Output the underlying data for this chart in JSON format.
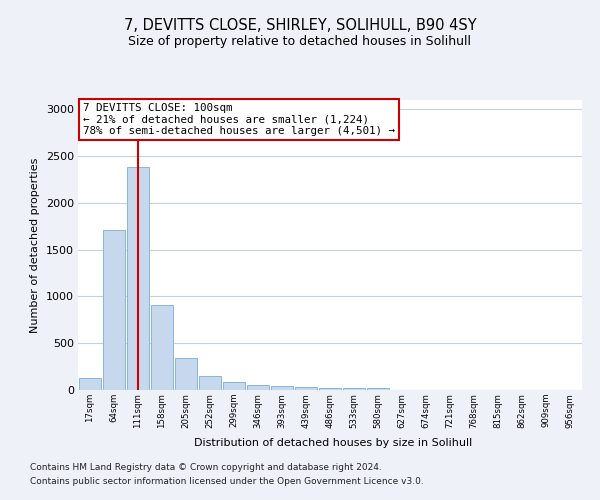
{
  "title": "7, DEVITTS CLOSE, SHIRLEY, SOLIHULL, B90 4SY",
  "subtitle": "Size of property relative to detached houses in Solihull",
  "xlabel": "Distribution of detached houses by size in Solihull",
  "ylabel": "Number of detached properties",
  "bar_color": "#c5d8ee",
  "bar_edge_color": "#7bafd4",
  "vline_color": "#cc0000",
  "vline_x": 2,
  "annotation_text": "7 DEVITTS CLOSE: 100sqm\n← 21% of detached houses are smaller (1,224)\n78% of semi-detached houses are larger (4,501) →",
  "categories": [
    "17sqm",
    "64sqm",
    "111sqm",
    "158sqm",
    "205sqm",
    "252sqm",
    "299sqm",
    "346sqm",
    "393sqm",
    "439sqm",
    "486sqm",
    "533sqm",
    "580sqm",
    "627sqm",
    "674sqm",
    "721sqm",
    "768sqm",
    "815sqm",
    "862sqm",
    "909sqm",
    "956sqm"
  ],
  "values": [
    130,
    1710,
    2380,
    910,
    340,
    150,
    85,
    55,
    40,
    30,
    25,
    20,
    20,
    0,
    0,
    0,
    0,
    0,
    0,
    0,
    0
  ],
  "ylim": [
    0,
    3100
  ],
  "yticks": [
    0,
    500,
    1000,
    1500,
    2000,
    2500,
    3000
  ],
  "footer_line1": "Contains HM Land Registry data © Crown copyright and database right 2024.",
  "footer_line2": "Contains public sector information licensed under the Open Government Licence v3.0.",
  "background_color": "#eef2f8",
  "plot_background": "#ffffff",
  "grid_color": "#c8d0de"
}
